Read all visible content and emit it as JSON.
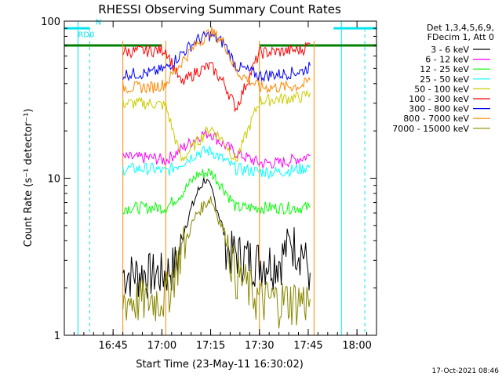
{
  "chart_data": {
    "type": "line",
    "title": "RHESSI Observing Summary Count Rates",
    "xlabel": "Start Time (23-May-11 16:30:02)",
    "ylabel": "Count Rate (s⁻¹ detector⁻¹)",
    "yscale": "log",
    "ylim": [
      1,
      100
    ],
    "xlim": [
      16.5,
      18.1
    ],
    "x_ticks": [
      {
        "value": 16.75,
        "label": "16:45"
      },
      {
        "value": 17.0,
        "label": "17:00"
      },
      {
        "value": 17.25,
        "label": "17:15"
      },
      {
        "value": 17.5,
        "label": "17:30"
      },
      {
        "value": 17.75,
        "label": "17:45"
      },
      {
        "value": 18.0,
        "label": "18:00"
      }
    ],
    "y_ticks": [
      {
        "value": 1,
        "label": "1"
      },
      {
        "value": 10,
        "label": "10"
      },
      {
        "value": 100,
        "label": "100"
      }
    ],
    "legend_header": [
      "Det 1,3,4,5,6,9,",
      "FDecim 1, Att 0"
    ],
    "legend_position": "right",
    "footer_date": "17-Oct-2021 08:46",
    "flags": [
      {
        "label": "RD0",
        "color": "#00e5ee"
      },
      {
        "label": "N",
        "color": "#00e5ee"
      }
    ],
    "night_bounds": [
      16.57,
      17.92
    ],
    "saa_line_value": 70,
    "saa_line_segments": [
      [
        16.5,
        17.0
      ],
      [
        17.5,
        18.1
      ]
    ],
    "series": [
      {
        "name": "3 - 6 keV",
        "color": "#000000",
        "x": [
          16.8,
          16.85,
          16.95,
          17.02,
          17.08,
          17.12,
          17.18,
          17.22,
          17.26,
          17.3,
          17.34,
          17.5,
          17.6,
          17.66,
          17.72,
          17.76
        ],
        "y": [
          2.5,
          2.5,
          2.5,
          2.5,
          3.0,
          5.0,
          8.0,
          10.0,
          8.0,
          5.5,
          3.5,
          3.0,
          3.0,
          4.0,
          3.5,
          2.5
        ]
      },
      {
        "name": "6 - 12 keV",
        "color": "#ff00ff",
        "x": [
          16.8,
          16.95,
          17.02,
          17.12,
          17.2,
          17.25,
          17.3,
          17.38,
          17.5,
          17.6,
          17.72,
          17.76
        ],
        "y": [
          13.5,
          13.5,
          13.0,
          16.0,
          19.0,
          19.5,
          17.0,
          14.5,
          12.5,
          12.5,
          13.5,
          14.0
        ]
      },
      {
        "name": "12 - 25 keV",
        "color": "#00ff00",
        "x": [
          16.8,
          16.95,
          17.02,
          17.1,
          17.18,
          17.25,
          17.32,
          17.38,
          17.5,
          17.6,
          17.72,
          17.76
        ],
        "y": [
          6.5,
          6.5,
          6.5,
          8.0,
          10.5,
          11.0,
          8.5,
          6.5,
          6.5,
          6.5,
          6.5,
          6.5
        ]
      },
      {
        "name": "25 - 50 keV",
        "color": "#00ffff",
        "x": [
          16.8,
          16.95,
          17.02,
          17.1,
          17.18,
          17.25,
          17.32,
          17.38,
          17.5,
          17.6,
          17.72,
          17.76
        ],
        "y": [
          11.5,
          11.5,
          11.0,
          12.5,
          14.5,
          15.0,
          13.0,
          11.5,
          11.0,
          11.0,
          11.5,
          12.0
        ]
      },
      {
        "name": "50 - 100 keV",
        "color": "#cccc00",
        "x": [
          16.8,
          16.95,
          17.02,
          17.1,
          17.18,
          17.25,
          17.32,
          17.38,
          17.5,
          17.6,
          17.72,
          17.76
        ],
        "y": [
          30,
          30,
          29,
          13,
          17,
          21,
          17,
          13,
          31,
          32,
          33,
          35
        ]
      },
      {
        "name": "100 - 300 keV",
        "color": "#ff0000",
        "x": [
          16.8,
          16.95,
          17.02,
          17.1,
          17.18,
          17.25,
          17.32,
          17.38,
          17.5,
          17.6,
          17.72,
          17.76
        ],
        "y": [
          64,
          65,
          66,
          40,
          48,
          52,
          40,
          28,
          63,
          64,
          66,
          72
        ]
      },
      {
        "name": "300 - 800 keV",
        "color": "#0000ff",
        "x": [
          16.8,
          16.95,
          17.02,
          17.1,
          17.18,
          17.25,
          17.32,
          17.38,
          17.5,
          17.6,
          17.72,
          17.76
        ],
        "y": [
          46,
          47,
          50,
          62,
          76,
          82,
          72,
          52,
          45,
          46,
          48,
          52
        ]
      },
      {
        "name": "800 - 7000 keV",
        "color": "#ff8800",
        "x": [
          16.8,
          16.95,
          17.02,
          17.1,
          17.18,
          17.25,
          17.32,
          17.38,
          17.5,
          17.6,
          17.72,
          17.76
        ],
        "y": [
          38,
          38,
          40,
          55,
          72,
          86,
          73,
          48,
          38,
          38,
          39,
          42
        ]
      },
      {
        "name": "7000 - 15000 keV",
        "color": "#888800",
        "x": [
          16.8,
          16.95,
          17.02,
          17.1,
          17.18,
          17.25,
          17.32,
          17.38,
          17.5,
          17.6,
          17.72,
          17.76
        ],
        "y": [
          1.7,
          1.7,
          1.8,
          3.5,
          6.0,
          7.5,
          4.5,
          2.5,
          1.7,
          1.7,
          1.7,
          1.7
        ]
      }
    ]
  }
}
